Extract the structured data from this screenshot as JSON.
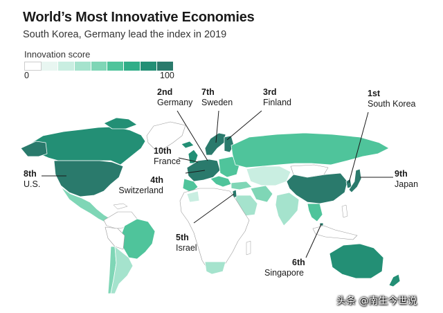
{
  "title": "World’s Most Innovative Economies",
  "subtitle": "South Korea, Germany lead the index in 2019",
  "legend": {
    "title": "Innovation score",
    "min": "0",
    "max": "100",
    "colors": [
      "#ffffff",
      "#e8f6f1",
      "#c9eee1",
      "#a5e3cd",
      "#7fd6b6",
      "#4fc49b",
      "#2fae88",
      "#238f75",
      "#2a7a6c"
    ]
  },
  "countries": [
    {
      "rank": "1st",
      "name": "South Korea"
    },
    {
      "rank": "2nd",
      "name": "Germany"
    },
    {
      "rank": "3rd",
      "name": "Finland"
    },
    {
      "rank": "4th",
      "name": "Switzerland"
    },
    {
      "rank": "5th",
      "name": "Israel"
    },
    {
      "rank": "6th",
      "name": "Singapore"
    },
    {
      "rank": "7th",
      "name": "Sweden"
    },
    {
      "rank": "8th",
      "name": "U.S."
    },
    {
      "rank": "9th",
      "name": "Japan"
    },
    {
      "rank": "10th",
      "name": "France"
    }
  ],
  "watermark": "头条 @南生今世说"
}
